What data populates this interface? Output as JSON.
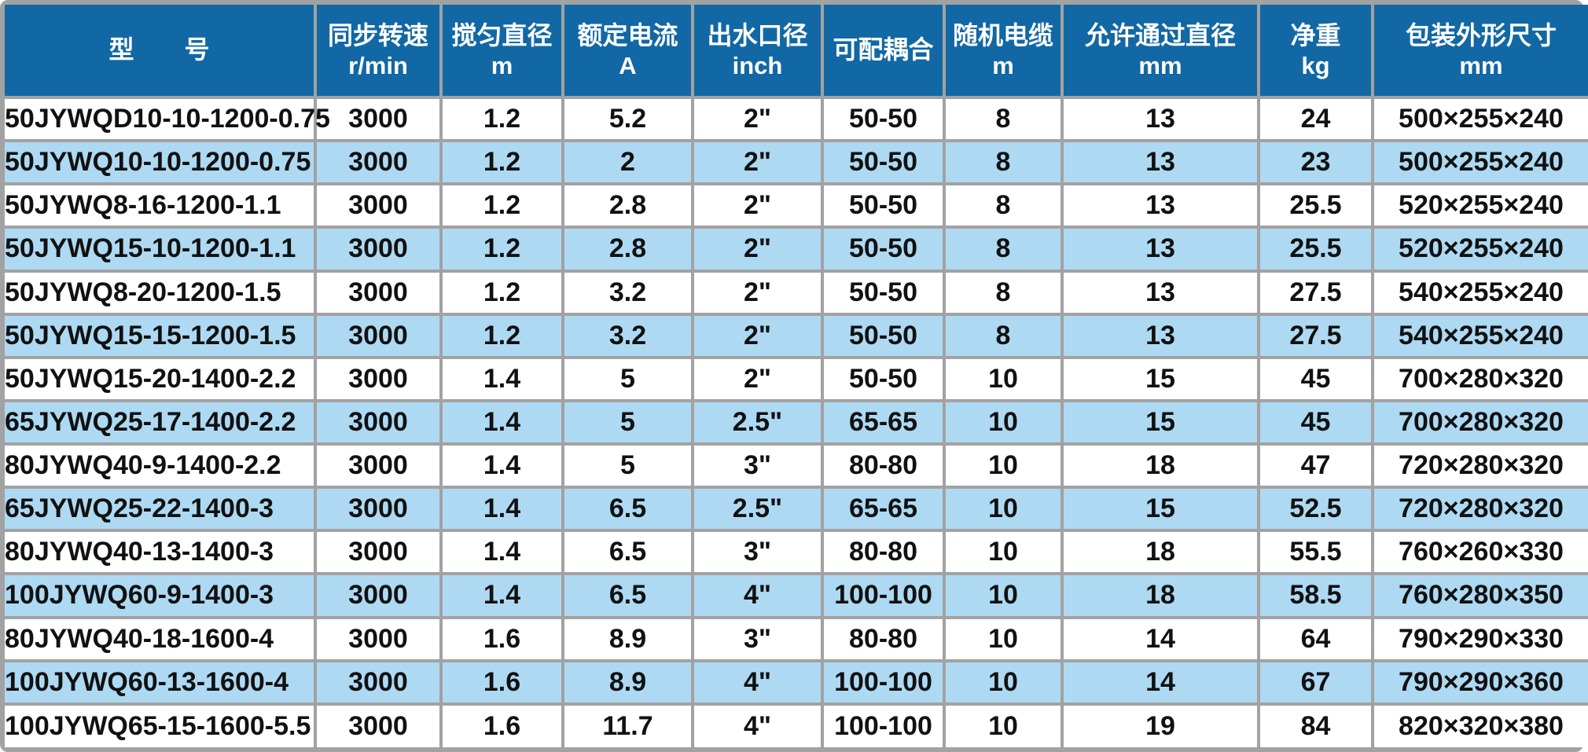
{
  "theme": {
    "header_bg": "#1268a4",
    "header_text": "#ffffff",
    "row_bg": "#ffffff",
    "row_alt_bg": "#aed9f2",
    "grid": "#a2a2a2",
    "text": "#111111",
    "page_bg": "#ffffff"
  },
  "table": {
    "columns": [
      {
        "label": "型　　号",
        "unit": ""
      },
      {
        "label": "同步转速",
        "unit": "r/min"
      },
      {
        "label": "搅匀直径",
        "unit": "m"
      },
      {
        "label": "额定电流",
        "unit": "A"
      },
      {
        "label": "出水口径",
        "unit": "inch"
      },
      {
        "label": "可配耦合",
        "unit": ""
      },
      {
        "label": "随机电缆",
        "unit": "m"
      },
      {
        "label": "允许通过直径",
        "unit": "mm"
      },
      {
        "label": "净重",
        "unit": "kg"
      },
      {
        "label": "包装外形尺寸",
        "unit": "mm"
      }
    ],
    "rows": [
      {
        "cells": [
          "50JYWQD10-10-1200-0.75",
          "3000",
          "1.2",
          "5.2",
          "2\"",
          "50-50",
          "8",
          "13",
          "24",
          "500×255×240"
        ]
      },
      {
        "cells": [
          "50JYWQ10-10-1200-0.75",
          "3000",
          "1.2",
          "2",
          "2\"",
          "50-50",
          "8",
          "13",
          "23",
          "500×255×240"
        ]
      },
      {
        "cells": [
          "50JYWQ8-16-1200-1.1",
          "3000",
          "1.2",
          "2.8",
          "2\"",
          "50-50",
          "8",
          "13",
          "25.5",
          "520×255×240"
        ]
      },
      {
        "cells": [
          "50JYWQ15-10-1200-1.1",
          "3000",
          "1.2",
          "2.8",
          "2\"",
          "50-50",
          "8",
          "13",
          "25.5",
          "520×255×240"
        ]
      },
      {
        "cells": [
          "50JYWQ8-20-1200-1.5",
          "3000",
          "1.2",
          "3.2",
          "2\"",
          "50-50",
          "8",
          "13",
          "27.5",
          "540×255×240"
        ]
      },
      {
        "cells": [
          "50JYWQ15-15-1200-1.5",
          "3000",
          "1.2",
          "3.2",
          "2\"",
          "50-50",
          "8",
          "13",
          "27.5",
          "540×255×240"
        ]
      },
      {
        "cells": [
          "50JYWQ15-20-1400-2.2",
          "3000",
          "1.4",
          "5",
          "2\"",
          "50-50",
          "10",
          "15",
          "45",
          "700×280×320"
        ]
      },
      {
        "cells": [
          "65JYWQ25-17-1400-2.2",
          "3000",
          "1.4",
          "5",
          "2.5\"",
          "65-65",
          "10",
          "15",
          "45",
          "700×280×320"
        ]
      },
      {
        "cells": [
          "80JYWQ40-9-1400-2.2",
          "3000",
          "1.4",
          "5",
          "3\"",
          "80-80",
          "10",
          "18",
          "47",
          "720×280×320"
        ]
      },
      {
        "cells": [
          "65JYWQ25-22-1400-3",
          "3000",
          "1.4",
          "6.5",
          "2.5\"",
          "65-65",
          "10",
          "15",
          "52.5",
          "720×280×320"
        ]
      },
      {
        "cells": [
          "80JYWQ40-13-1400-3",
          "3000",
          "1.4",
          "6.5",
          "3\"",
          "80-80",
          "10",
          "18",
          "55.5",
          "760×260×330"
        ]
      },
      {
        "cells": [
          "100JYWQ60-9-1400-3",
          "3000",
          "1.4",
          "6.5",
          "4\"",
          "100-100",
          "10",
          "18",
          "58.5",
          "760×280×350"
        ]
      },
      {
        "cells": [
          "80JYWQ40-18-1600-4",
          "3000",
          "1.6",
          "8.9",
          "3\"",
          "80-80",
          "10",
          "14",
          "64",
          "790×290×330"
        ]
      },
      {
        "cells": [
          "100JYWQ60-13-1600-4",
          "3000",
          "1.6",
          "8.9",
          "4\"",
          "100-100",
          "10",
          "14",
          "67",
          "790×290×360"
        ]
      },
      {
        "cells": [
          "100JYWQ65-15-1600-5.5",
          "3000",
          "1.6",
          "11.7",
          "4\"",
          "100-100",
          "10",
          "19",
          "84",
          "820×320×380"
        ]
      }
    ]
  }
}
